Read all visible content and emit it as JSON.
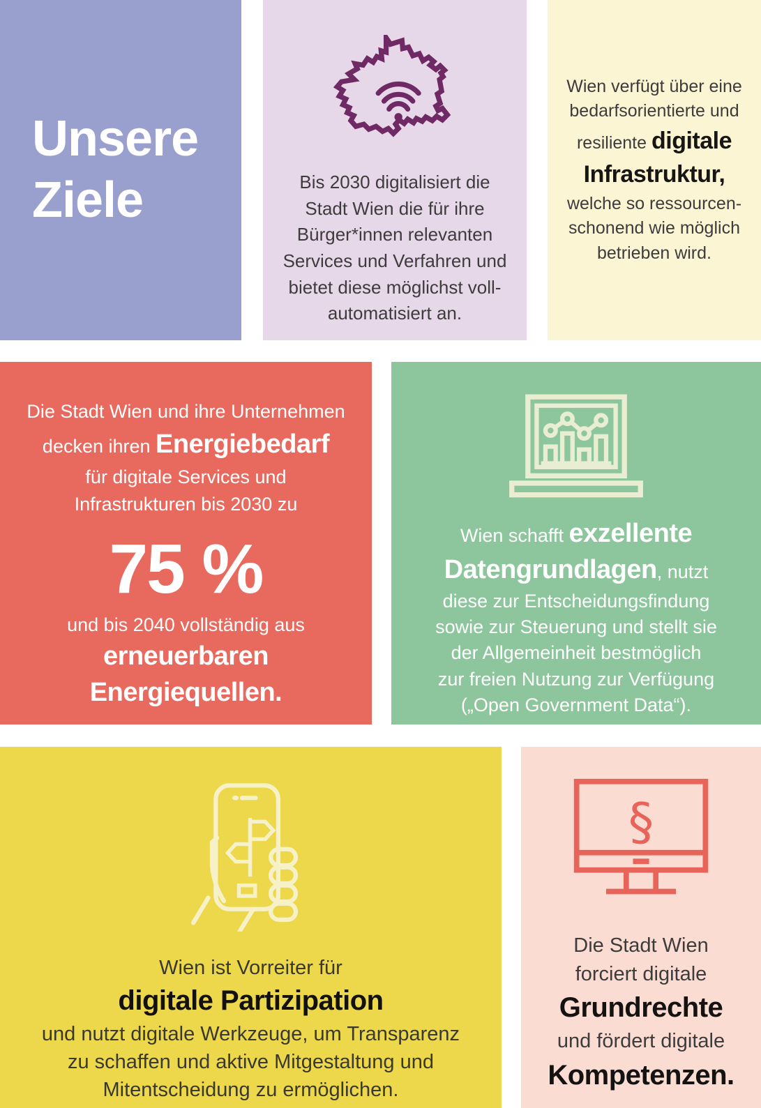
{
  "goals": {
    "title_lines": [
      "Unsere",
      "Ziele"
    ]
  },
  "services": {
    "icon": "vienna-map-wifi-icon",
    "lines": [
      [
        {
          "t": "Bis 2030 digitalisiert die"
        }
      ],
      [
        {
          "t": "Stadt Wien die für ihre"
        }
      ],
      [
        {
          "t": "Bürger*innen relevanten"
        }
      ],
      [
        {
          "t": "Services und Verfahren und"
        }
      ],
      [
        {
          "t": "bietet diese möglichst voll-"
        }
      ],
      [
        {
          "t": "automatisiert an."
        }
      ]
    ]
  },
  "infrastructure": {
    "lines": [
      [
        {
          "t": "Wien verfügt über eine"
        }
      ],
      [
        {
          "t": "bedarfsorientierte und"
        }
      ],
      [
        {
          "t": "resiliente "
        },
        {
          "t": "digitale",
          "s": "lg"
        }
      ],
      [
        {
          "t": "Infrastruktur,",
          "s": "lg"
        }
      ],
      [
        {
          "t": "welche so ressourcen-"
        }
      ],
      [
        {
          "t": "schonend wie möglich"
        }
      ],
      [
        {
          "t": "betrieben wird."
        }
      ]
    ]
  },
  "energy": {
    "lines_top": [
      [
        {
          "t": "Die Stadt Wien und ihre Unternehmen"
        }
      ],
      [
        {
          "t": "decken ihren "
        },
        {
          "t": "Energiebedarf",
          "s": "lg"
        }
      ],
      [
        {
          "t": "für digitale Services und"
        }
      ],
      [
        {
          "t": "Infrastrukturen bis 2030 zu"
        }
      ]
    ],
    "percentage": "75 %",
    "lines_bottom": [
      [
        {
          "t": "und bis 2040 vollständig aus"
        }
      ],
      [
        {
          "t": "erneuerbaren",
          "s": "lg"
        }
      ],
      [
        {
          "t": "Energiequellen.",
          "s": "lg"
        }
      ]
    ]
  },
  "data": {
    "icon": "laptop-chart-icon",
    "lines": [
      [
        {
          "t": "Wien schafft "
        },
        {
          "t": "exzellente",
          "s": "lg"
        }
      ],
      [
        {
          "t": "Datengrundlagen",
          "s": "lg"
        },
        {
          "t": ", nutzt"
        }
      ],
      [
        {
          "t": "diese zur Entscheidungsfindung"
        }
      ],
      [
        {
          "t": "sowie zur Steuerung und stellt sie"
        }
      ],
      [
        {
          "t": "der Allgemeinheit bestmöglich"
        }
      ],
      [
        {
          "t": "zur freien Nutzung zur Verfügung"
        }
      ],
      [
        {
          "t": "(„Open Government Data“)."
        }
      ]
    ]
  },
  "participation": {
    "icon": "hand-smartphone-icon",
    "lines": [
      [
        {
          "t": "Wien ist Vorreiter für"
        }
      ],
      [
        {
          "t": "digitale Partizipation",
          "s": "lg"
        }
      ],
      [
        {
          "t": "und nutzt digitale Werkzeuge, um Transparenz"
        }
      ],
      [
        {
          "t": "zu schaffen und aktive Mitgestaltung und"
        }
      ],
      [
        {
          "t": "Mitentscheidung zu ermöglichen."
        }
      ]
    ]
  },
  "rights": {
    "icon": "monitor-paragraph-icon",
    "icon_symbol": "§",
    "lines": [
      [
        {
          "t": "Die Stadt Wien"
        }
      ],
      [
        {
          "t": "forciert digitale"
        }
      ],
      [
        {
          "t": "Grundrechte",
          "s": "lg"
        }
      ],
      [
        {
          "t": "und fördert digitale"
        }
      ],
      [
        {
          "t": "Kompetenzen.",
          "s": "lg"
        }
      ]
    ]
  },
  "colors": {
    "background": "#ffffff",
    "tile_goals": "#99a0ce",
    "tile_services": "#e6d8e8",
    "tile_infrastructure": "#fcf5d3",
    "tile_energy": "#e8695e",
    "tile_data": "#8dc69c",
    "tile_participation": "#edd74b",
    "tile_rights": "#fadcd2",
    "icon_map_purple": "#6f2a66",
    "icon_laptop_cream": "#e9eed3",
    "icon_phone_cream": "#f7f1c8",
    "icon_monitor_red": "#e8645a",
    "text_dark": "#3d3b3c",
    "text_black": "#171614",
    "text_white": "#ffffff"
  }
}
